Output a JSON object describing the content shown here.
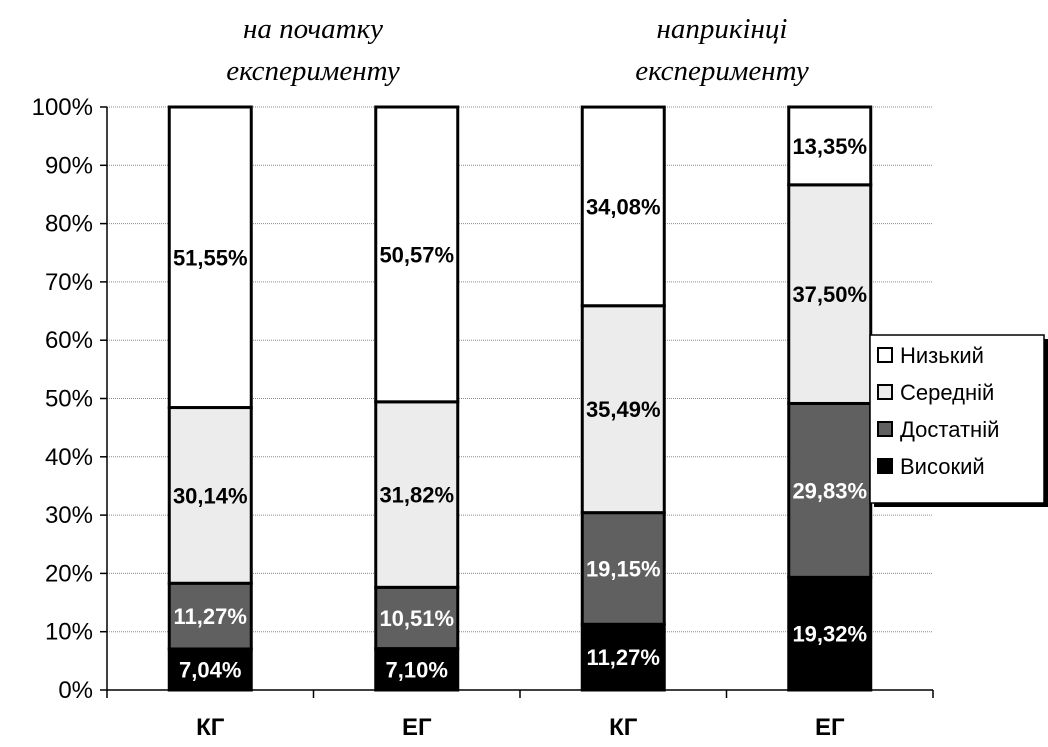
{
  "chart_data": {
    "type": "bar",
    "stacked": true,
    "percent_scale": true,
    "group_titles": [
      [
        "на початку",
        "експерименту"
      ],
      [
        "наприкінці",
        "експерименту"
      ]
    ],
    "categories": [
      "КГ",
      "ЕГ",
      "КГ",
      "ЕГ"
    ],
    "series": [
      {
        "name": "Високий",
        "values": [
          7.04,
          7.1,
          11.27,
          19.32
        ],
        "labels": [
          "7,04%",
          "7,10%",
          "11,27%",
          "19,32%"
        ],
        "color": "#000000",
        "label_color": "#ffffff"
      },
      {
        "name": "Достатній",
        "values": [
          11.27,
          10.51,
          19.15,
          29.83
        ],
        "labels": [
          "11,27%",
          "10,51%",
          "19,15%",
          "29,83%"
        ],
        "color": "#606060",
        "label_color": "#ffffff"
      },
      {
        "name": "Середній",
        "values": [
          30.14,
          31.82,
          35.49,
          37.5
        ],
        "labels": [
          "30,14%",
          "31,82%",
          "35,49%",
          "37,50%"
        ],
        "color": "#ececec",
        "label_color": "#000000"
      },
      {
        "name": "Низький",
        "values": [
          51.55,
          50.57,
          34.08,
          13.35
        ],
        "labels": [
          "51,55%",
          "50,57%",
          "34,08%",
          "13,35%"
        ],
        "color": "#ffffff",
        "label_color": "#000000"
      }
    ],
    "yticks": [
      "0%",
      "10%",
      "20%",
      "30%",
      "40%",
      "50%",
      "60%",
      "70%",
      "80%",
      "90%",
      "100%"
    ],
    "ylim": [
      0,
      100
    ],
    "grid": true,
    "legend_position": "right",
    "legend_order": [
      "Низький",
      "Середній",
      "Достатній",
      "Високий"
    ]
  }
}
